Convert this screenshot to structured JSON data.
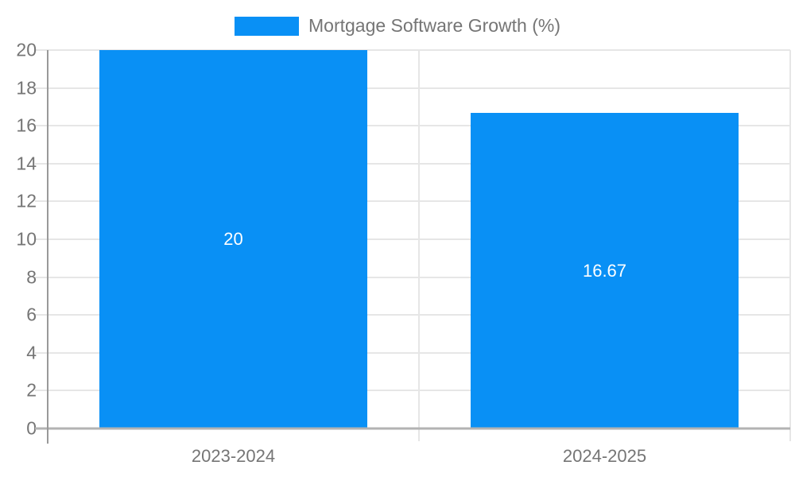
{
  "chart_data": {
    "type": "bar",
    "title": "",
    "xlabel": "",
    "ylabel": "",
    "legend_position": "top",
    "grid": true,
    "categories": [
      "2023-2024",
      "2024-2025"
    ],
    "series": [
      {
        "name": "Mortgage Software Growth (%)",
        "values": [
          20,
          16.67
        ],
        "color": "#0990f5"
      }
    ],
    "value_labels": [
      "20",
      "16.67"
    ],
    "ylim": [
      0,
      20
    ],
    "ytick_step": 2,
    "yticks": [
      0,
      2,
      4,
      6,
      8,
      10,
      12,
      14,
      16,
      18,
      20
    ]
  },
  "colors": {
    "bar": "#0990f5",
    "grid": "#e6e6e6",
    "axis": "#999999",
    "baseline": "#b3b3b3",
    "tick_label": "#757575",
    "legend_text": "#757575",
    "data_label": "#ffffff",
    "background": "#ffffff"
  }
}
